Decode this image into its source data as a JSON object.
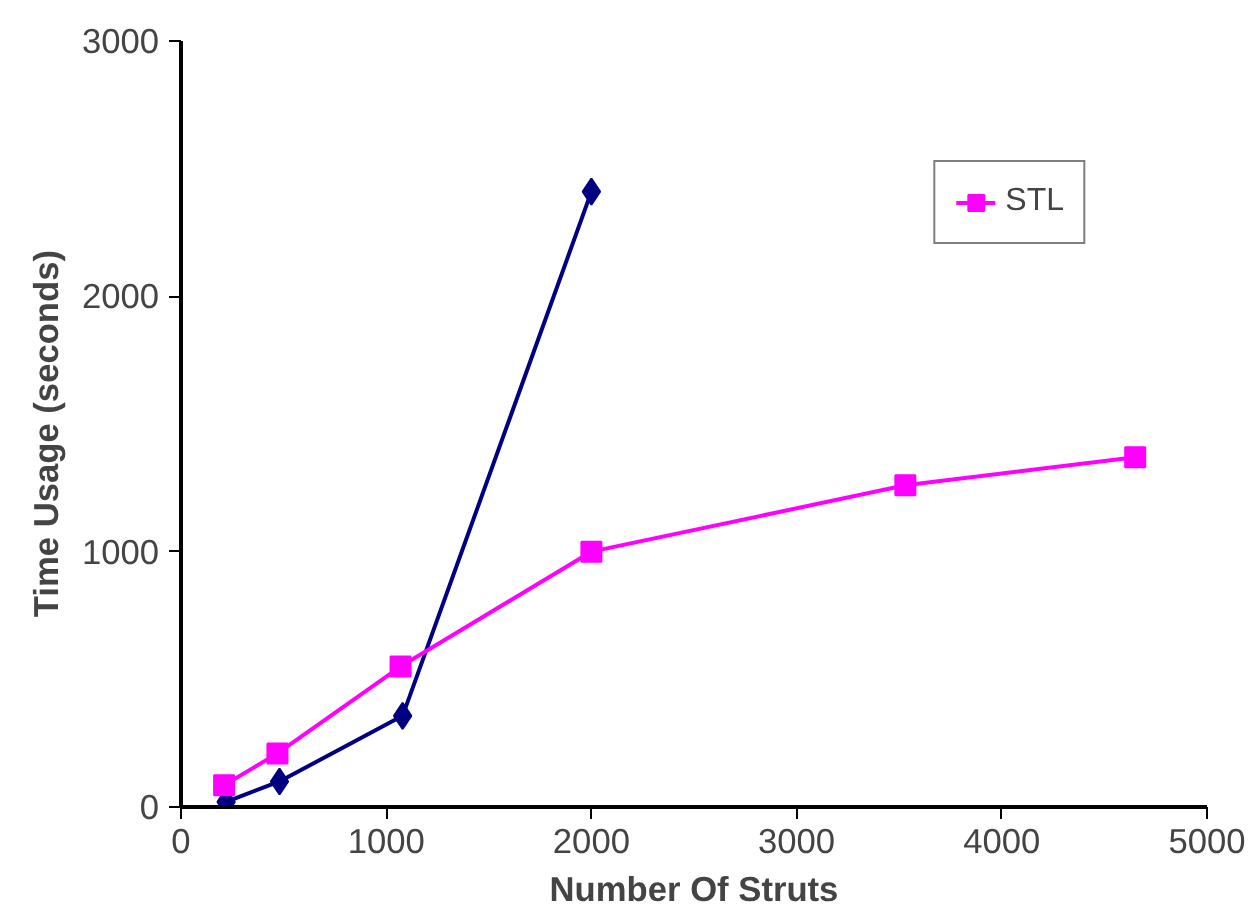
{
  "chart_data": {
    "type": "line",
    "xlabel": "Number Of Struts",
    "ylabel": "Time   Usage (seconds)",
    "xlim": [
      0,
      5000
    ],
    "ylim": [
      0,
      3000
    ],
    "xticks": [
      0,
      1000,
      2000,
      3000,
      4000,
      5000
    ],
    "yticks": [
      0,
      1000,
      2000,
      3000
    ],
    "grid": false,
    "legend": "top right",
    "series": [
      {
        "color": "#000080",
        "marker": "diamond",
        "x": [
          220,
          480,
          1080,
          2000
        ],
        "values": [
          20,
          100,
          357,
          2410
        ]
      },
      {
        "name": "STL",
        "color": "#ff00ff",
        "marker": "square",
        "x": [
          210,
          470,
          1070,
          2000,
          3530,
          4650
        ],
        "values": [
          85,
          210,
          550,
          1000,
          1260,
          1370
        ]
      }
    ]
  }
}
